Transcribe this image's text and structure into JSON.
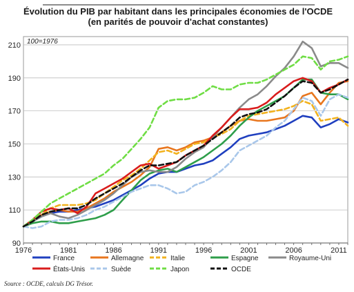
{
  "chart_data": {
    "type": "line",
    "title": "Évolution du PIB par habitant dans les principales économies de l'OCDE",
    "subtitle": "(en parités de pouvoir d'achat constantes)",
    "base_note": "100=1976",
    "source": "Source : OCDE, calculs DG Trésor.",
    "xlim": [
      1976,
      2012
    ],
    "ylim": [
      90,
      215
    ],
    "x_ticks": [
      1976,
      1981,
      1986,
      1991,
      1996,
      2001,
      2006,
      2011
    ],
    "y_ticks": [
      90,
      110,
      130,
      150,
      170,
      190,
      210
    ],
    "grid": true,
    "legend_position": "bottom",
    "x": [
      1976,
      1977,
      1978,
      1979,
      1980,
      1981,
      1982,
      1983,
      1984,
      1985,
      1986,
      1987,
      1988,
      1989,
      1990,
      1991,
      1992,
      1993,
      1994,
      1995,
      1996,
      1997,
      1998,
      1999,
      2000,
      2001,
      2002,
      2003,
      2004,
      2005,
      2006,
      2007,
      2008,
      2009,
      2010,
      2011,
      2012
    ],
    "series": [
      {
        "name": "France",
        "color": "#1f3fbf",
        "dash": "solid",
        "values": [
          100,
          103,
          106,
          108,
          109,
          109,
          110,
          111,
          112,
          114,
          116,
          119,
          122,
          125,
          129,
          132,
          133,
          133,
          135,
          137,
          138,
          140,
          144,
          148,
          153,
          155,
          156,
          157,
          159,
          161,
          164,
          167,
          166,
          160,
          162,
          165,
          163
        ]
      },
      {
        "name": "Allemagne",
        "color": "#e8761e",
        "dash": "solid",
        "values": [
          100,
          104,
          107,
          109,
          110,
          109,
          109,
          111,
          114,
          117,
          121,
          124,
          127,
          131,
          136,
          147,
          148,
          146,
          148,
          151,
          152,
          154,
          157,
          161,
          164,
          165,
          164,
          164,
          165,
          166,
          170,
          179,
          181,
          174,
          181,
          187,
          188
        ]
      },
      {
        "name": "Italie",
        "color": "#f2b21e",
        "dash": "dash",
        "values": [
          100,
          103,
          107,
          111,
          113,
          113,
          113,
          114,
          116,
          120,
          124,
          128,
          131,
          135,
          140,
          145,
          146,
          144,
          147,
          150,
          151,
          154,
          156,
          159,
          164,
          167,
          168,
          169,
          170,
          171,
          173,
          176,
          174,
          164,
          165,
          166,
          161
        ]
      },
      {
        "name": "Espagne",
        "color": "#2e9e4a",
        "dash": "solid",
        "values": [
          100,
          102,
          103,
          103,
          102,
          102,
          103,
          104,
          105,
          107,
          110,
          116,
          122,
          128,
          132,
          134,
          135,
          133,
          136,
          139,
          142,
          146,
          150,
          155,
          161,
          166,
          170,
          173,
          176,
          179,
          184,
          189,
          189,
          181,
          180,
          180,
          177
        ]
      },
      {
        "name": "Royaume-Uni",
        "color": "#8a8a8a",
        "dash": "solid",
        "values": [
          100,
          103,
          106,
          108,
          106,
          105,
          107,
          110,
          113,
          116,
          120,
          125,
          130,
          133,
          134,
          133,
          133,
          136,
          141,
          145,
          148,
          154,
          160,
          166,
          172,
          177,
          180,
          185,
          191,
          196,
          203,
          212,
          208,
          197,
          199,
          199,
          196
        ]
      },
      {
        "name": "États-Unis",
        "color": "#d91c1c",
        "dash": "solid",
        "values": [
          100,
          104,
          109,
          111,
          110,
          111,
          108,
          112,
          120,
          123,
          126,
          129,
          133,
          137,
          138,
          135,
          137,
          139,
          143,
          146,
          149,
          155,
          160,
          166,
          171,
          171,
          172,
          175,
          180,
          184,
          188,
          190,
          188,
          181,
          184,
          186,
          189
        ]
      },
      {
        "name": "Suède",
        "color": "#a9c7ea",
        "dash": "dash",
        "values": [
          100,
          99,
          100,
          103,
          104,
          104,
          105,
          107,
          110,
          112,
          115,
          118,
          121,
          123,
          125,
          125,
          123,
          120,
          121,
          125,
          127,
          130,
          134,
          139,
          146,
          149,
          152,
          155,
          160,
          164,
          171,
          178,
          176,
          167,
          177,
          180,
          178
        ]
      },
      {
        "name": "Japon",
        "color": "#6fdd44",
        "dash": "dash",
        "values": [
          100,
          104,
          109,
          114,
          117,
          120,
          123,
          126,
          129,
          132,
          137,
          141,
          147,
          153,
          160,
          172,
          176,
          177,
          177,
          178,
          181,
          185,
          183,
          183,
          186,
          187,
          187,
          189,
          192,
          195,
          198,
          203,
          202,
          195,
          200,
          201,
          203
        ]
      },
      {
        "name": "OCDE",
        "color": "#111111",
        "dash": "dash",
        "values": [
          100,
          103,
          107,
          109,
          110,
          111,
          111,
          113,
          117,
          120,
          123,
          126,
          130,
          134,
          137,
          137,
          138,
          139,
          143,
          146,
          149,
          153,
          157,
          161,
          166,
          168,
          169,
          171,
          175,
          179,
          184,
          188,
          187,
          181,
          183,
          186,
          189
        ]
      }
    ]
  }
}
